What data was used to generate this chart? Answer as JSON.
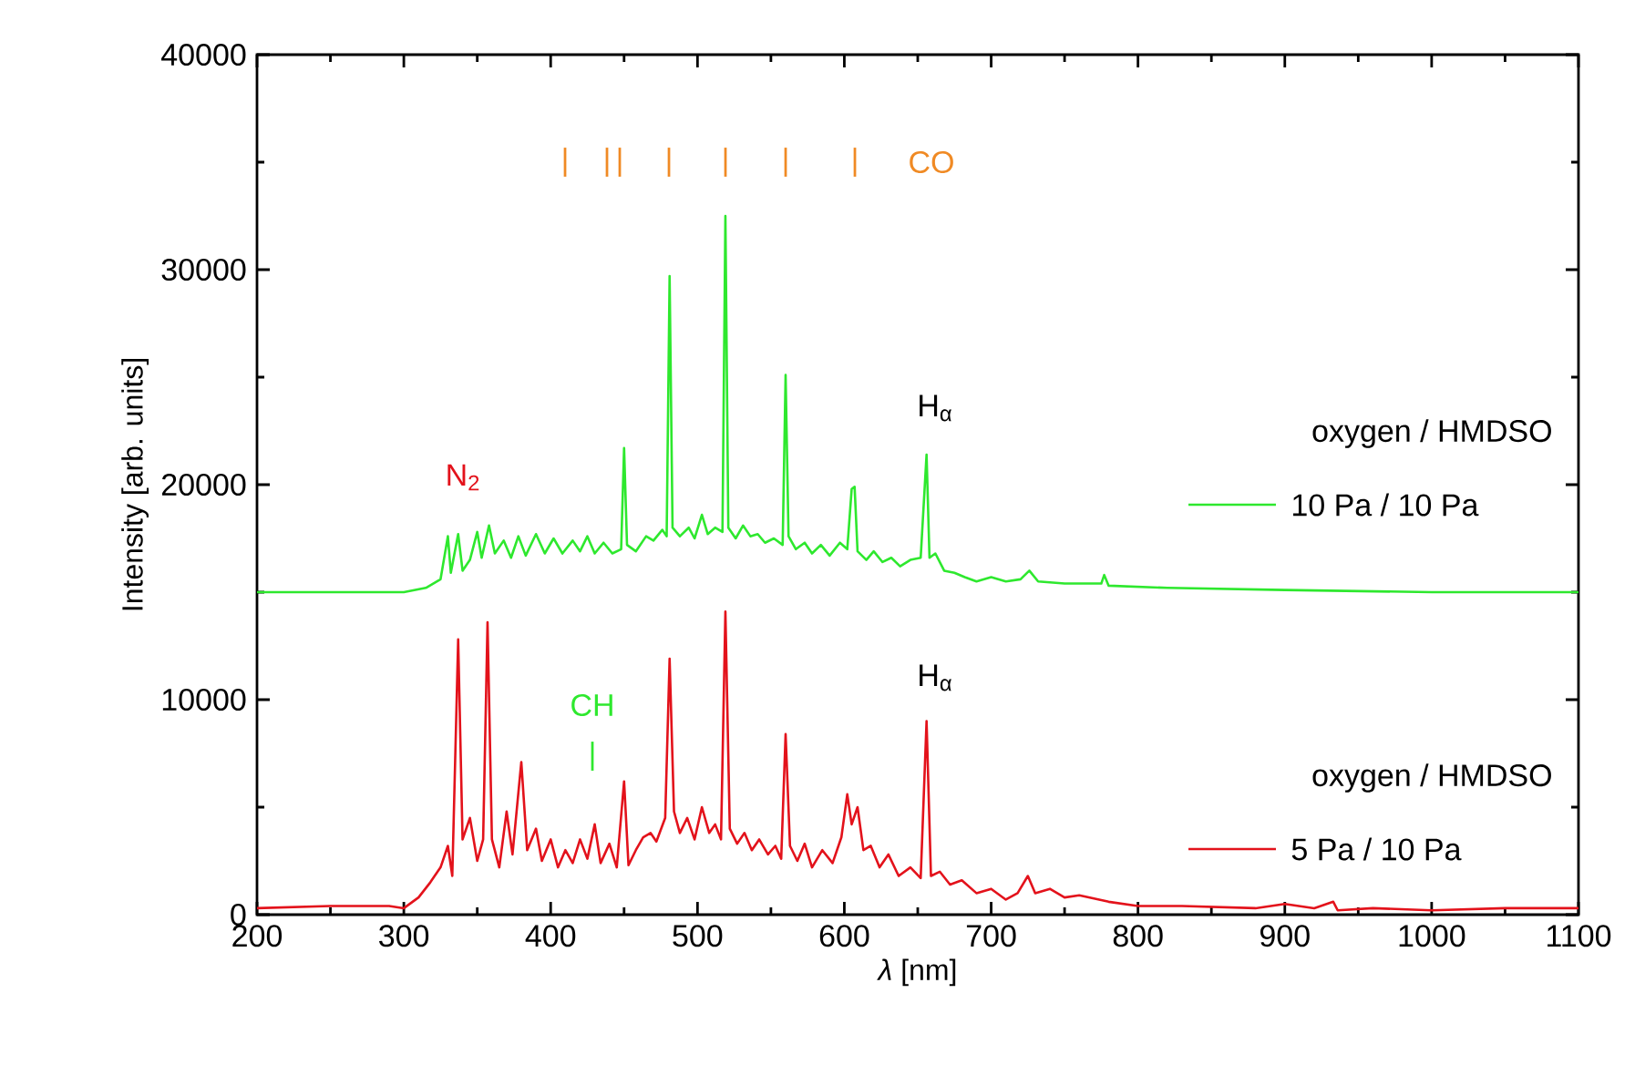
{
  "chart_data": {
    "type": "line",
    "xlabel": "*λ* [nm]",
    "ylabel": "Intensity [arb. units]",
    "xlim": [
      200,
      1100
    ],
    "xticks": [
      200,
      300,
      400,
      500,
      600,
      700,
      800,
      900,
      1000,
      1100
    ],
    "ylim": [
      0,
      40000
    ],
    "yticks": [
      0,
      10000,
      20000,
      30000,
      40000
    ],
    "grid": false,
    "legend": "right",
    "marker": "none",
    "line_style": "solid",
    "series": [
      {
        "name": "10 Pa / 10 Pa",
        "color": "#2ee82e",
        "x": [
          200,
          250,
          300,
          315,
          325,
          330,
          332,
          337,
          340,
          345,
          350,
          353,
          358,
          362,
          368,
          373,
          378,
          383,
          390,
          396,
          402,
          408,
          415,
          420,
          425,
          430,
          436,
          442,
          448,
          450,
          452,
          458,
          465,
          470,
          476,
          479,
          481,
          483,
          488,
          494,
          498,
          503,
          507,
          512,
          517,
          519,
          521,
          526,
          531,
          536,
          541,
          546,
          552,
          558,
          560,
          562,
          567,
          573,
          578,
          584,
          590,
          597,
          602,
          605,
          607,
          609,
          615,
          620,
          626,
          632,
          638,
          645,
          652,
          656,
          658,
          662,
          668,
          675,
          682,
          690,
          700,
          710,
          720,
          726,
          732,
          750,
          775,
          777,
          780,
          820,
          900,
          1000,
          1100
        ],
        "values": [
          15000,
          15000,
          15000,
          15200,
          15600,
          17600,
          15900,
          17700,
          16000,
          16500,
          17800,
          16600,
          18100,
          16800,
          17400,
          16600,
          17600,
          16700,
          17700,
          16800,
          17500,
          16800,
          17400,
          16900,
          17600,
          16800,
          17300,
          16800,
          17000,
          21700,
          17200,
          16900,
          17600,
          17400,
          17900,
          17600,
          29700,
          18000,
          17600,
          18000,
          17500,
          18600,
          17700,
          18000,
          17800,
          32500,
          18000,
          17500,
          18100,
          17600,
          17700,
          17300,
          17500,
          17200,
          25100,
          17600,
          17000,
          17300,
          16800,
          17200,
          16700,
          17300,
          17000,
          19800,
          19900,
          16900,
          16500,
          16900,
          16400,
          16600,
          16200,
          16500,
          16600,
          21400,
          16600,
          16800,
          16000,
          15900,
          15700,
          15500,
          15700,
          15500,
          15600,
          16000,
          15500,
          15400,
          15400,
          15800,
          15300,
          15200,
          15100,
          15000,
          15000
        ]
      },
      {
        "name": "5 Pa / 10 Pa",
        "color": "#e3121b",
        "x": [
          200,
          250,
          290,
          300,
          310,
          318,
          325,
          330,
          333,
          337,
          340,
          345,
          350,
          354,
          357,
          360,
          365,
          370,
          374,
          380,
          384,
          390,
          394,
          400,
          405,
          410,
          415,
          420,
          425,
          430,
          434,
          440,
          445,
          450,
          453,
          458,
          463,
          468,
          472,
          478,
          481,
          484,
          488,
          493,
          498,
          503,
          508,
          512,
          516,
          519,
          522,
          527,
          532,
          537,
          542,
          548,
          553,
          557,
          560,
          563,
          568,
          573,
          578,
          585,
          592,
          598,
          602,
          605,
          609,
          613,
          618,
          624,
          630,
          637,
          645,
          652,
          656,
          659,
          665,
          672,
          680,
          690,
          700,
          710,
          718,
          725,
          730,
          740,
          750,
          760,
          780,
          800,
          830,
          880,
          900,
          920,
          933,
          936,
          960,
          1000,
          1050,
          1100
        ],
        "values": [
          300,
          400,
          400,
          300,
          800,
          1500,
          2200,
          3200,
          1800,
          12800,
          3500,
          4500,
          2500,
          3500,
          13600,
          3500,
          2200,
          4800,
          2800,
          7100,
          3000,
          4000,
          2500,
          3500,
          2200,
          3000,
          2400,
          3500,
          2600,
          4200,
          2400,
          3300,
          2200,
          6200,
          2300,
          3000,
          3600,
          3800,
          3400,
          4500,
          11900,
          4800,
          3800,
          4500,
          3500,
          5000,
          3800,
          4200,
          3500,
          14100,
          4000,
          3300,
          3800,
          3000,
          3500,
          2800,
          3200,
          2600,
          8400,
          3200,
          2500,
          3300,
          2200,
          3000,
          2400,
          3600,
          5600,
          4200,
          5000,
          3000,
          3200,
          2200,
          2800,
          1800,
          2200,
          1700,
          9000,
          1800,
          2000,
          1400,
          1600,
          1000,
          1200,
          700,
          1000,
          1800,
          1000,
          1200,
          800,
          900,
          600,
          400,
          400,
          300,
          500,
          300,
          600,
          200,
          300,
          200,
          300,
          300
        ]
      }
    ],
    "legend_title": "oxygen / HMDSO",
    "annotations": [
      "N$_{2}$",
      "|",
      "|",
      "|",
      "|",
      "|",
      "|",
      "|",
      "CO",
      "H$_{α}$",
      "H$_{α}$",
      "CH",
      "|"
    ]
  }
}
